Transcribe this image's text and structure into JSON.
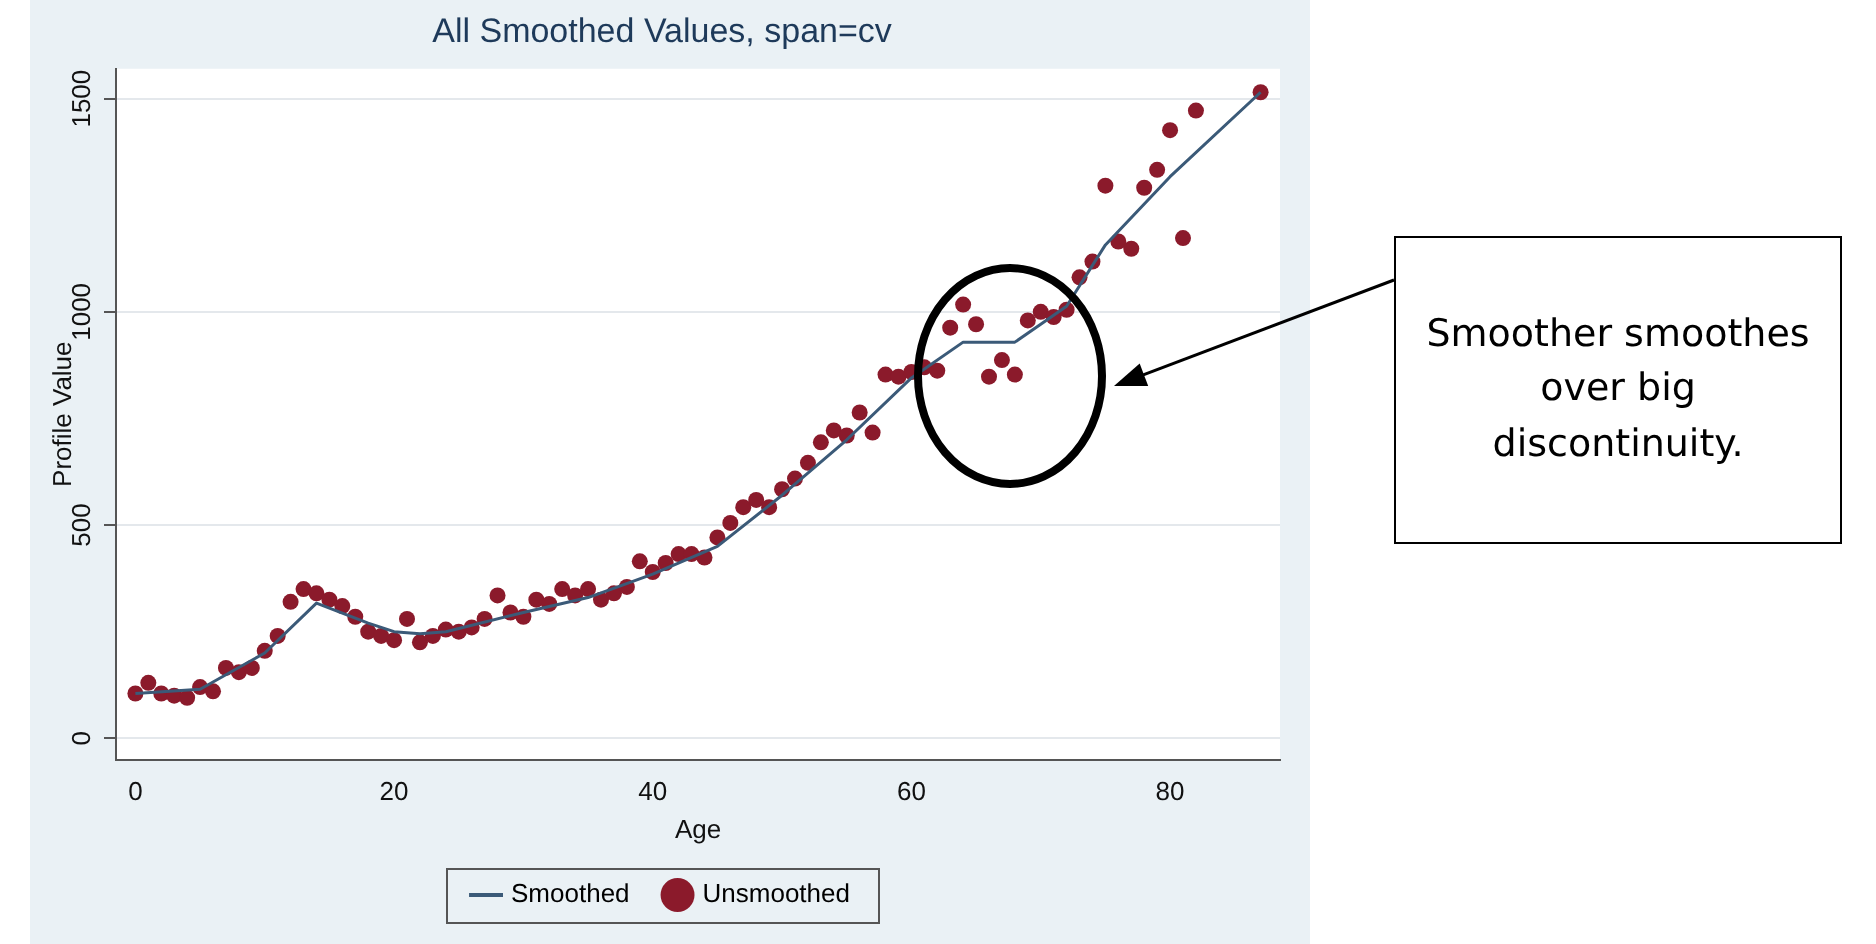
{
  "chart_data": {
    "type": "line",
    "title": "All Smoothed Values, span=cv",
    "xlabel": "Age",
    "ylabel": "Profile Value",
    "xlim": [
      -1.5,
      88.5
    ],
    "xticks": [
      0,
      20,
      40,
      60,
      80
    ],
    "ylim": [
      -50,
      1570
    ],
    "yticks": [
      0,
      500,
      1000,
      1500
    ],
    "grid": "y",
    "legend": "bottom",
    "series": [
      {
        "name": "Smoothed",
        "color": "#3b5a78",
        "marker": "none",
        "line_style": "solid",
        "x": [
          0,
          5,
          10,
          14,
          18,
          20,
          22,
          24,
          30,
          35,
          40,
          45,
          50,
          55,
          60,
          64,
          68,
          70,
          72,
          75,
          80,
          87
        ],
        "values": [
          105,
          115,
          200,
          317,
          270,
          250,
          245,
          250,
          295,
          330,
          385,
          450,
          570,
          700,
          845,
          929,
          929,
          971,
          1013,
          1157,
          1317,
          1515
        ]
      },
      {
        "name": "Unsmoothed",
        "type": "scatter",
        "color": "#8b1a2b",
        "marker": "circle",
        "x": [
          0,
          1,
          2,
          3,
          4,
          5,
          6,
          7,
          8,
          9,
          10,
          11,
          12,
          13,
          14,
          15,
          16,
          17,
          18,
          19,
          20,
          21,
          22,
          23,
          24,
          25,
          26,
          27,
          28,
          29,
          30,
          31,
          32,
          33,
          34,
          35,
          36,
          37,
          38,
          39,
          40,
          41,
          42,
          43,
          44,
          45,
          46,
          47,
          48,
          49,
          50,
          51,
          52,
          53,
          54,
          55,
          56,
          57,
          58,
          59,
          60,
          61,
          62,
          63,
          64,
          65,
          66,
          67,
          68,
          69,
          70,
          71,
          72,
          73,
          74,
          75,
          76,
          77,
          78,
          79,
          80,
          81,
          82,
          87
        ],
        "values": [
          105,
          130,
          105,
          100,
          95,
          120,
          110,
          165,
          155,
          165,
          205,
          240,
          320,
          350,
          340,
          325,
          310,
          285,
          250,
          240,
          230,
          280,
          225,
          240,
          255,
          250,
          260,
          280,
          335,
          295,
          285,
          325,
          315,
          350,
          335,
          350,
          325,
          340,
          355,
          415,
          390,
          411,
          432,
          432,
          424,
          471,
          505,
          542,
          559,
          542,
          584,
          609,
          646,
          694,
          722,
          710,
          764,
          717,
          853,
          848,
          859,
          870,
          862,
          963,
          1017,
          971,
          848,
          887,
          853,
          980,
          1000,
          988,
          1005,
          1081,
          1118,
          1296,
          1165,
          1148,
          1291,
          1333,
          1426,
          1173,
          1472,
          1515
        ]
      }
    ],
    "annotations": [
      "Smoother smoothes over big discontinuity."
    ]
  }
}
